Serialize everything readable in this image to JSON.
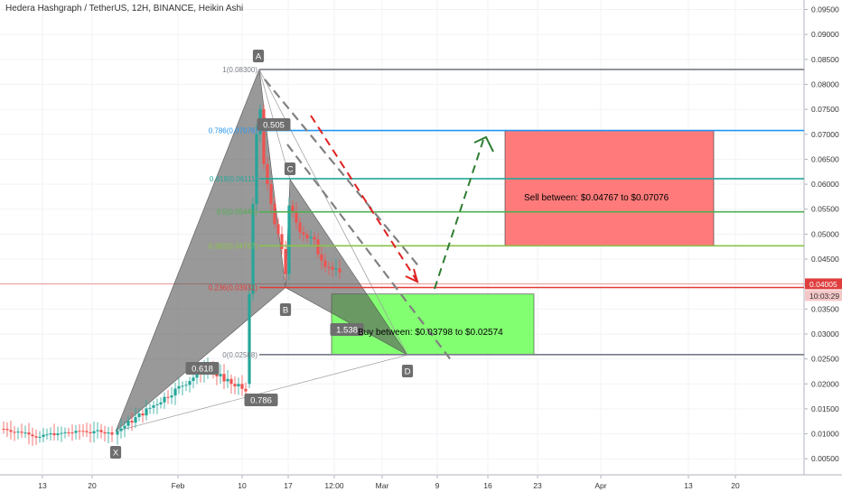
{
  "chart": {
    "title": "Hedera Hashgraph / TetherUS, 12H, BINANCE, Heikin Ashi",
    "symbol": "HBARUSDT",
    "timeframe": "12H",
    "exchange": "BINANCE",
    "candle_type": "Heikin Ashi"
  },
  "price_axis": {
    "ticks": [
      "0.09500",
      "0.09000",
      "0.08500",
      "0.08000",
      "0.07500",
      "0.07000",
      "0.06500",
      "0.06000",
      "0.05500",
      "0.05000",
      "0.04500",
      "0.04000",
      "0.03500",
      "0.03000",
      "0.02500",
      "0.02000",
      "0.01500",
      "0.01000",
      "0.00500"
    ],
    "current_price": "0.04005",
    "countdown": "10:03:29",
    "current_color": "#e03e3e"
  },
  "time_axis": {
    "ticks": [
      "13",
      "20",
      "Feb",
      "10",
      "17",
      "12:00",
      "Mar",
      "9",
      "16",
      "23",
      "Apr",
      "13",
      "20"
    ]
  },
  "pattern": {
    "points": [
      {
        "label": "X",
        "price": 0.0105
      },
      {
        "label": "A",
        "price": 0.083
      },
      {
        "label": "B",
        "price": 0.0393
      },
      {
        "label": "C",
        "price": 0.061
      },
      {
        "label": "D",
        "price": 0.0258
      }
    ],
    "ratios": [
      "0.505",
      "0.618",
      "0.786",
      "1.538"
    ]
  },
  "fib_levels": [
    {
      "label": "1(0.08300)",
      "price": 0.083,
      "color": "#787b86"
    },
    {
      "label": "0.786(0.07076)",
      "price": 0.07076,
      "color": "#2196f3"
    },
    {
      "label": "0.618(0.06111)",
      "price": 0.06111,
      "color": "#26a69a"
    },
    {
      "label": "0.5(0.05446)",
      "price": 0.05446,
      "color": "#4caf50"
    },
    {
      "label": "0.382(0.04767)",
      "price": 0.04767,
      "color": "#8bc34a"
    },
    {
      "label": "0.236(0.03931)",
      "price": 0.03931,
      "color": "#e53935"
    },
    {
      "label": "0(0.02588)",
      "price": 0.02588,
      "color": "#787b86"
    }
  ],
  "zones": {
    "sell_text": "Sell between: $0.04767 to $0.07076",
    "buy_text": "Buy between: $0.03798 to $0.02574",
    "sell_color": "#ff7b7b",
    "buy_color": "#7dff6b"
  }
}
